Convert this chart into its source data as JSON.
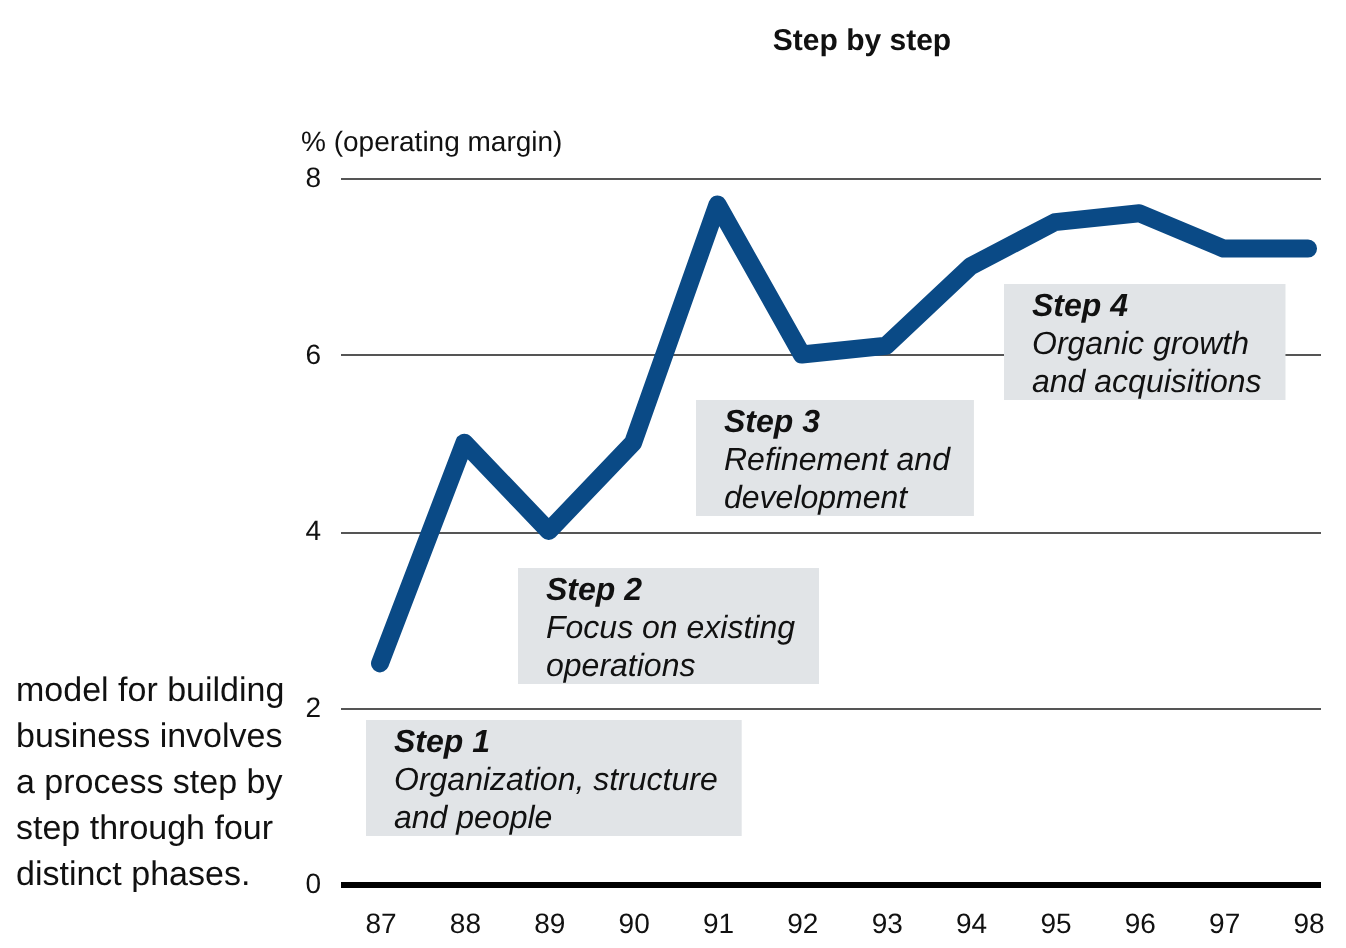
{
  "chart_data": {
    "type": "line",
    "title": "Step by step",
    "ylabel": "% (operating margin)",
    "categories": [
      "87",
      "88",
      "89",
      "90",
      "91",
      "92",
      "93",
      "94",
      "95",
      "96",
      "97",
      "98"
    ],
    "series": [
      {
        "color": "#0a4a86",
        "values": [
          2.5,
          5,
          4,
          5,
          7.7,
          6,
          6.1,
          7,
          7.5,
          7.6,
          7.2,
          7.2
        ]
      }
    ],
    "ylim": [
      0,
      8
    ],
    "yticks": [
      0,
      2,
      4,
      6,
      8
    ],
    "grid": "y",
    "line_style": "solid",
    "annotations": [
      "Step 1\nOrganization, structure\nand people",
      "Step 2\nFocus on existing\noperations",
      "Step 3\nRefinement and\ndevelopment",
      "Step 4\nOrganic growth\nand acquisitions",
      "model for building business involves a process step by step through four distinct phases."
    ]
  }
}
